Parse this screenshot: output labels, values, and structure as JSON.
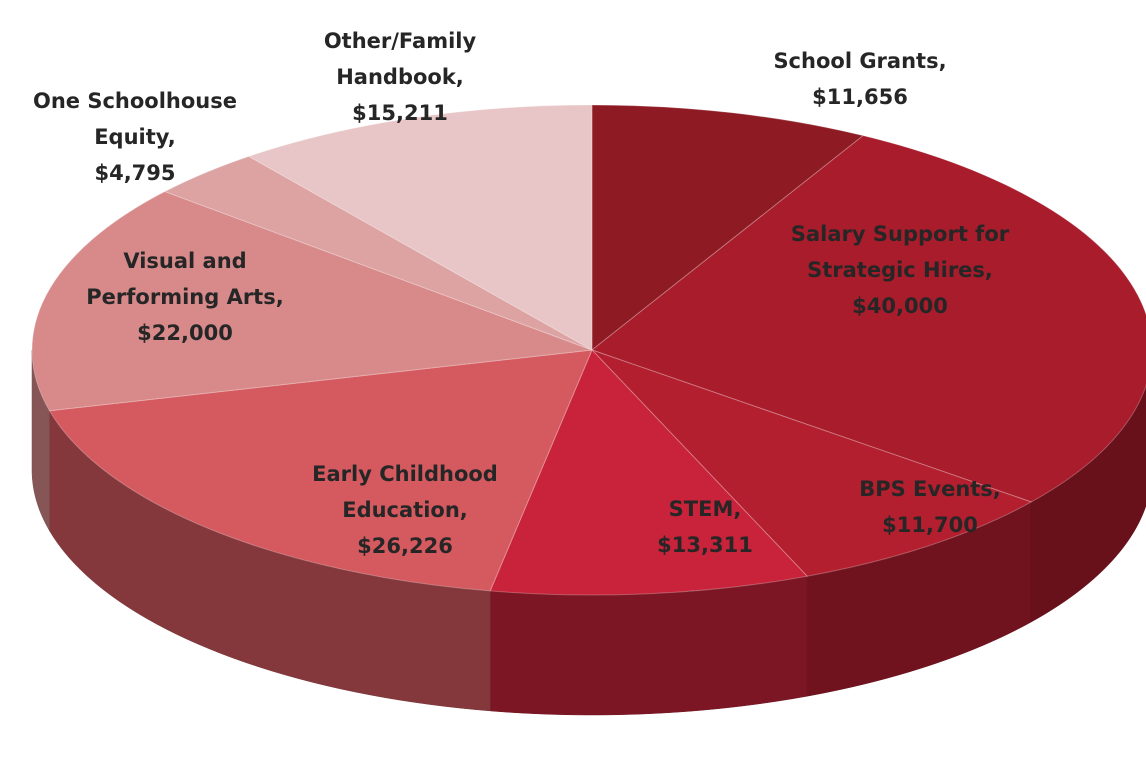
{
  "chart_data": {
    "type": "pie3d",
    "categories": [
      "School Grants,",
      "Salary Support for Strategic Hires,",
      "BPS Events,",
      "STEM,",
      "Early Childhood Education,",
      "Visual and Performing Arts,",
      "One Schoolhouse Equity,",
      "Other/Family Handbook,"
    ],
    "values": [
      11656,
      40000,
      11700,
      13311,
      26226,
      22000,
      4795,
      15211
    ],
    "value_labels": [
      "$11,656",
      "$40,000",
      "$11,700",
      "$13,311",
      "$26,226",
      "$22,000",
      "$4,795",
      "$15,211"
    ],
    "colors": [
      "#8e1a24",
      "#a81c2c",
      "#b41f30",
      "#c8233a",
      "#d55a60",
      "#d88a8a",
      "#dda3a3",
      "#e8c5c6"
    ]
  }
}
